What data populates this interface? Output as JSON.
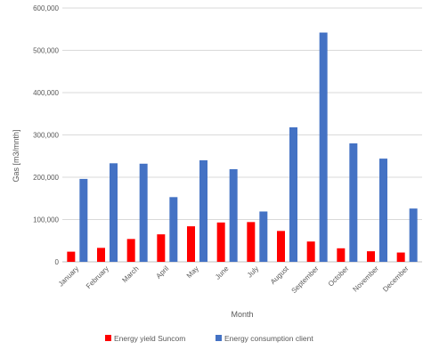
{
  "chart_data": {
    "type": "bar",
    "title": "",
    "xlabel": "Month",
    "ylabel": "Gas [m3/mnth]",
    "ylim": [
      0,
      600000
    ],
    "yticks": [
      0,
      100000,
      200000,
      300000,
      400000,
      500000,
      600000
    ],
    "ytick_labels": [
      "0",
      "100,000",
      "200,000",
      "300,000",
      "400,000",
      "500,000",
      "600,000"
    ],
    "grid": true,
    "legend_position": "bottom",
    "categories": [
      "January",
      "February",
      "March",
      "April",
      "May",
      "June",
      "July",
      "August",
      "September",
      "October",
      "November",
      "December"
    ],
    "series": [
      {
        "name": "Energy yield Suncom",
        "color": "#ff0000",
        "values": [
          24000,
          33000,
          54000,
          65000,
          84000,
          93000,
          94000,
          73000,
          48000,
          32000,
          25000,
          22000
        ]
      },
      {
        "name": "Energy consumption client",
        "color": "#4472c4",
        "values": [
          196000,
          233000,
          232000,
          153000,
          240000,
          219000,
          119000,
          318000,
          542000,
          280000,
          244000,
          126000
        ]
      }
    ]
  }
}
